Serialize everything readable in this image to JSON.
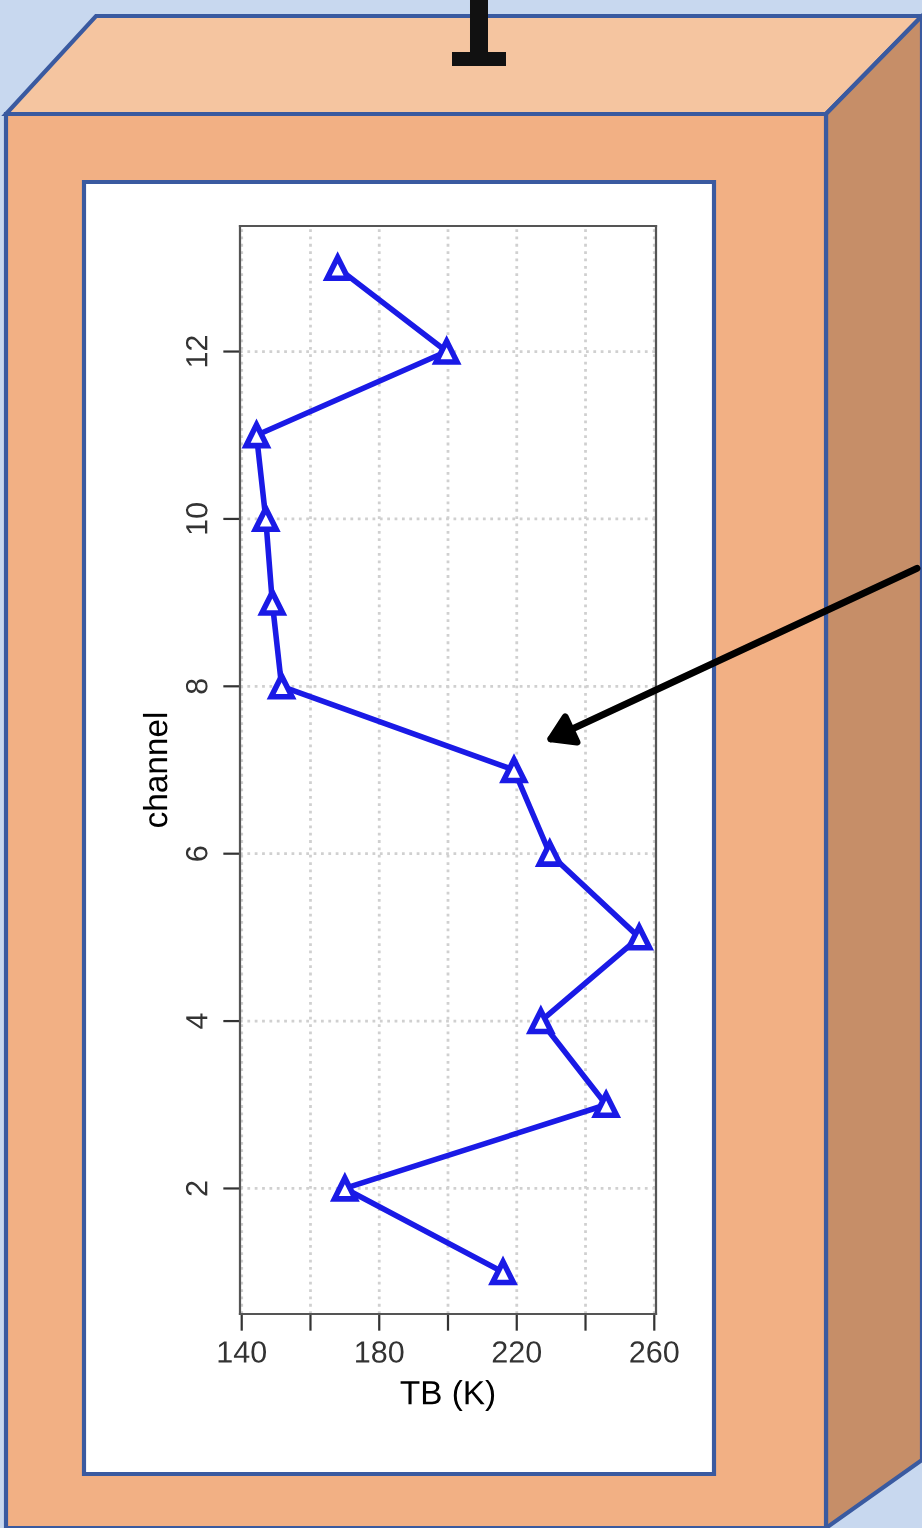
{
  "chart_data": {
    "type": "line",
    "xlabel": "TB (K)",
    "ylabel": "channel",
    "series": [
      {
        "color": "#1a1ae6",
        "x": [
          216,
          170,
          246,
          227,
          255.6,
          229.6,
          219.2,
          151.6,
          148.9,
          147,
          144.3,
          199.6,
          167.9
        ],
        "values": [
          1,
          2,
          3,
          4,
          5,
          6,
          7,
          8,
          9,
          10,
          11,
          12,
          13
        ]
      }
    ],
    "xlim": [
      139.5,
      260.5
    ],
    "ylim": [
      0.5,
      13.5
    ],
    "xticks": [
      140,
      {
        "value": 160,
        "label": null
      },
      180,
      {
        "value": 200,
        "label": null
      },
      220,
      {
        "value": 240,
        "label": null
      },
      260
    ],
    "yticks": [
      2,
      4,
      6,
      8,
      10,
      12
    ],
    "grid": true,
    "marker": "triangle",
    "line_style": "solid",
    "legend": false
  }
}
